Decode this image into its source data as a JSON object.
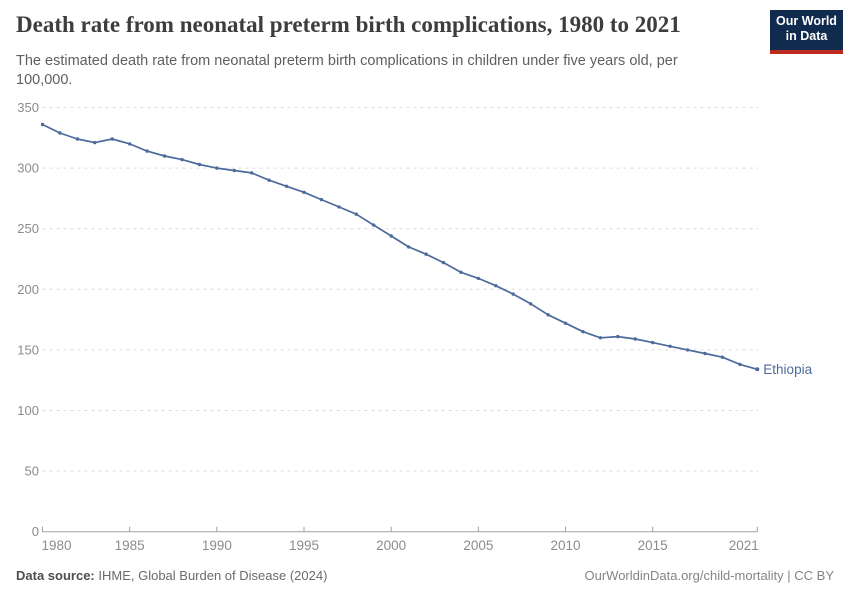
{
  "header": {
    "title": "Death rate from neonatal preterm birth complications, 1980 to 2021",
    "subtitle": "The estimated death rate from neonatal preterm birth complications in children under five years old, per 100,000.",
    "logo": {
      "line1": "Our World",
      "line2": "in Data",
      "bg_color": "#112b4e",
      "stripe_color": "#bb2b22"
    }
  },
  "footer": {
    "source_label": "Data source:",
    "source_text": " IHME, Global Burden of Disease (2024)",
    "attribution": "OurWorldinData.org/child-mortality | CC BY"
  },
  "chart_data": {
    "type": "line",
    "title": "Death rate from neonatal preterm birth complications, 1980 to 2021",
    "xlabel": "",
    "ylabel": "",
    "xlim": [
      1980,
      2021
    ],
    "ylim": [
      0,
      350
    ],
    "x_ticks": [
      1980,
      1985,
      1990,
      1995,
      2000,
      2005,
      2010,
      2015,
      2021
    ],
    "y_ticks": [
      0,
      50,
      100,
      150,
      200,
      250,
      300,
      350
    ],
    "grid": "horizontal-dashed",
    "legend_position": "end-of-line-label",
    "series": [
      {
        "name": "Ethiopia",
        "color": "#4c6a9c",
        "end_label": "Ethiopia",
        "x": [
          1980,
          1981,
          1982,
          1983,
          1984,
          1985,
          1986,
          1987,
          1988,
          1989,
          1990,
          1991,
          1992,
          1993,
          1994,
          1995,
          1996,
          1997,
          1998,
          1999,
          2000,
          2001,
          2002,
          2003,
          2004,
          2005,
          2006,
          2007,
          2008,
          2009,
          2010,
          2011,
          2012,
          2013,
          2014,
          2015,
          2016,
          2017,
          2018,
          2019,
          2020,
          2021
        ],
        "values": [
          336,
          329,
          324,
          321,
          324,
          320,
          314,
          310,
          307,
          303,
          300,
          298,
          296,
          290,
          285,
          280,
          274,
          268,
          262,
          253,
          244,
          235,
          229,
          222,
          214,
          209,
          203,
          196,
          188,
          179,
          172,
          165,
          160,
          161,
          159,
          156,
          153,
          150,
          147,
          144,
          138,
          134
        ]
      }
    ],
    "style": {
      "grid_color": "#dcdcdc",
      "axis_color": "#a0a0a0",
      "tick_label_color": "#8c8c8c"
    }
  }
}
